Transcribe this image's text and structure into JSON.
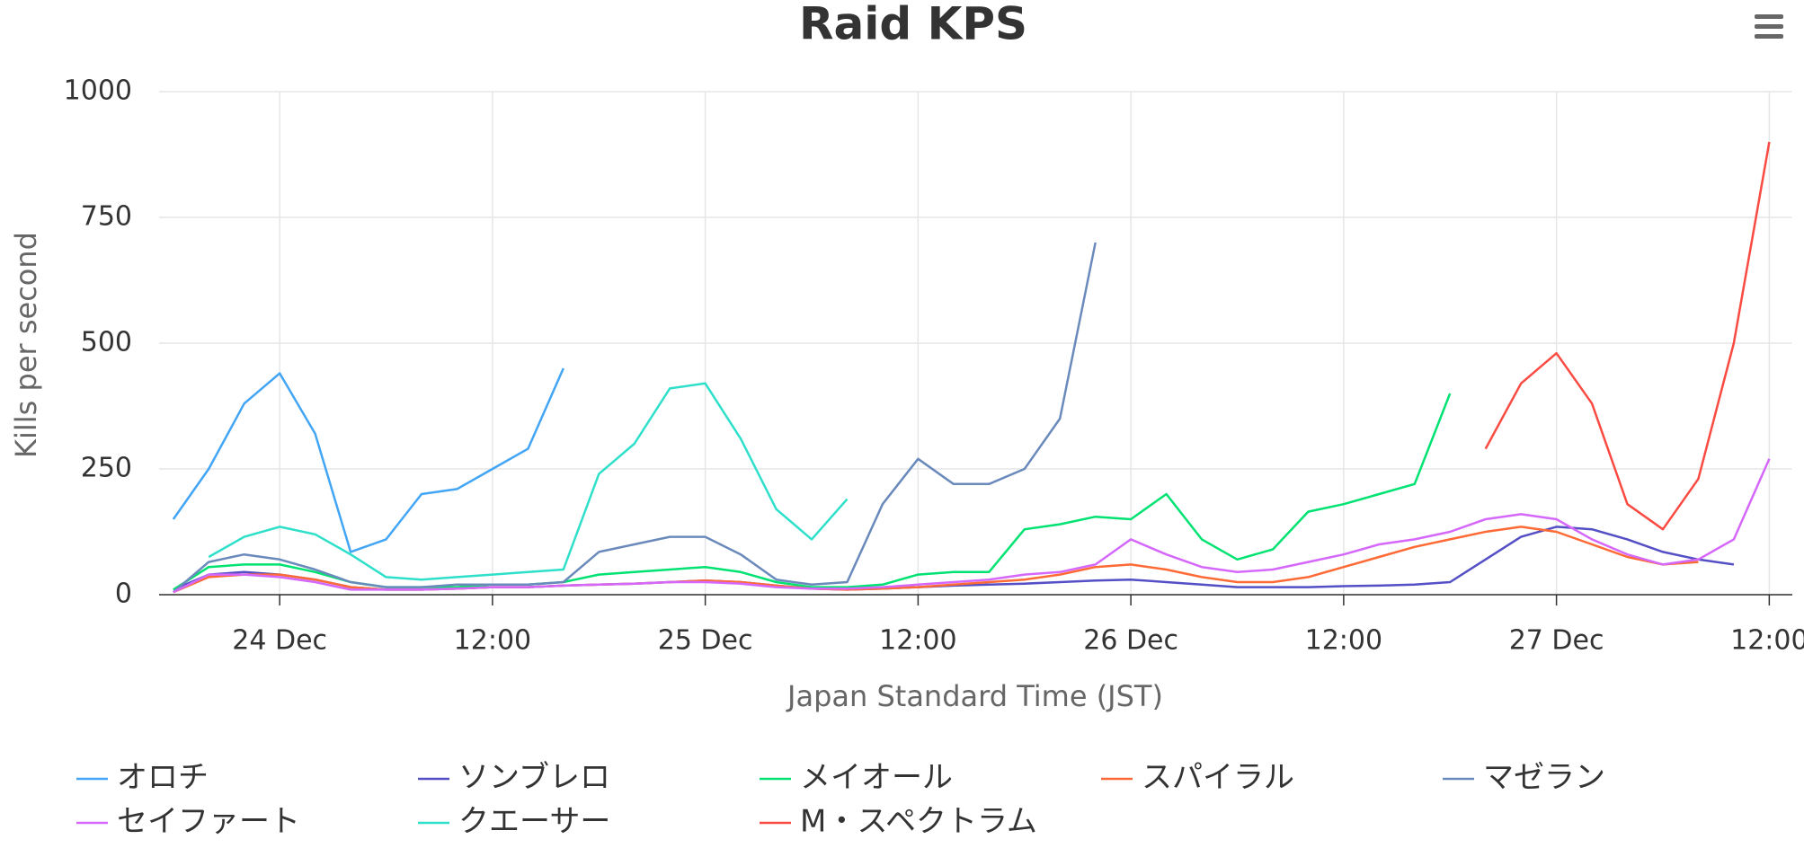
{
  "chart_data": {
    "type": "line",
    "title": "Raid KPS",
    "x_label": "Japan Standard Time (JST)",
    "y_label": "Kills per second",
    "x": [
      -6,
      -4,
      -2,
      0,
      2,
      4,
      6,
      8,
      10,
      12,
      14,
      16,
      18,
      20,
      22,
      24,
      26,
      28,
      30,
      32,
      34,
      36,
      38,
      40,
      42,
      44,
      46,
      48,
      50,
      52,
      54,
      56,
      58,
      60,
      62,
      64,
      66,
      68,
      70,
      72,
      74,
      76,
      78,
      80,
      82,
      84
    ],
    "xlim": [
      -6.8,
      85.3
    ],
    "xticks": [
      {
        "value": 0,
        "label": "24 Dec"
      },
      {
        "value": 12,
        "label": "12:00"
      },
      {
        "value": 24,
        "label": "25 Dec"
      },
      {
        "value": 36,
        "label": "12:00"
      },
      {
        "value": 48,
        "label": "26 Dec"
      },
      {
        "value": 60,
        "label": "12:00"
      },
      {
        "value": 72,
        "label": "27 Dec"
      },
      {
        "value": 84,
        "label": "12:00"
      }
    ],
    "ylim": [
      0,
      1000
    ],
    "yticks": [
      0,
      250,
      500,
      750,
      1000
    ],
    "grid": true,
    "series": [
      {
        "name": "オロチ",
        "color": "#42a5f5",
        "values": [
          150,
          250,
          380,
          440,
          320,
          85,
          110,
          200,
          210,
          250,
          290,
          450,
          null,
          null,
          null,
          null,
          null,
          null,
          null,
          null,
          null,
          null,
          null,
          null,
          null,
          null,
          null,
          null,
          null,
          null,
          null,
          null,
          null,
          null,
          null,
          null,
          null,
          null,
          null,
          null,
          null,
          null,
          null,
          null,
          null,
          null
        ]
      },
      {
        "name": "ソンブレロ",
        "color": "#544fc5",
        "values": [
          10,
          40,
          45,
          40,
          30,
          15,
          10,
          10,
          12,
          15,
          15,
          18,
          20,
          22,
          25,
          28,
          25,
          18,
          12,
          10,
          12,
          15,
          18,
          20,
          22,
          25,
          28,
          30,
          25,
          20,
          15,
          15,
          15,
          17,
          18,
          20,
          25,
          70,
          115,
          135,
          130,
          110,
          85,
          70,
          60,
          null
        ]
      },
      {
        "name": "メイオール",
        "color": "#00e272",
        "values": [
          10,
          55,
          60,
          60,
          45,
          25,
          15,
          15,
          15,
          20,
          20,
          25,
          40,
          45,
          50,
          55,
          45,
          25,
          15,
          15,
          20,
          40,
          45,
          45,
          130,
          140,
          155,
          150,
          200,
          110,
          70,
          90,
          165,
          180,
          200,
          220,
          400,
          null,
          null,
          null,
          null,
          null,
          null,
          null,
          null,
          null
        ]
      },
      {
        "name": "スパイラル",
        "color": "#fe6a35",
        "values": [
          5,
          35,
          40,
          40,
          30,
          15,
          10,
          10,
          12,
          15,
          15,
          18,
          20,
          22,
          25,
          28,
          25,
          18,
          12,
          10,
          12,
          15,
          20,
          25,
          30,
          40,
          55,
          60,
          50,
          35,
          25,
          25,
          35,
          55,
          75,
          95,
          110,
          125,
          135,
          125,
          100,
          75,
          60,
          65,
          null,
          null
        ]
      },
      {
        "name": "マゼラン",
        "color": "#6b8abc",
        "values": [
          5,
          65,
          80,
          70,
          50,
          25,
          15,
          15,
          20,
          20,
          20,
          25,
          85,
          100,
          115,
          115,
          80,
          30,
          20,
          25,
          180,
          270,
          220,
          220,
          250,
          350,
          700,
          null,
          null,
          null,
          null,
          null,
          null,
          null,
          null,
          null,
          null,
          null,
          null,
          null,
          null,
          null,
          null,
          null,
          null,
          null
        ]
      },
      {
        "name": "セイファート",
        "color": "#d568fb",
        "values": [
          5,
          40,
          40,
          35,
          25,
          10,
          10,
          10,
          12,
          15,
          15,
          18,
          20,
          22,
          25,
          25,
          22,
          15,
          12,
          12,
          15,
          20,
          25,
          30,
          40,
          45,
          60,
          110,
          80,
          55,
          45,
          50,
          65,
          80,
          100,
          110,
          125,
          150,
          160,
          150,
          110,
          80,
          60,
          70,
          110,
          270
        ]
      },
      {
        "name": "クエーサー",
        "color": "#2ee0ca",
        "values": [
          null,
          75,
          115,
          135,
          120,
          80,
          35,
          30,
          35,
          40,
          45,
          50,
          240,
          300,
          410,
          420,
          310,
          170,
          110,
          190,
          null,
          null,
          null,
          null,
          null,
          null,
          null,
          null,
          null,
          null,
          null,
          null,
          null,
          null,
          null,
          null,
          null,
          null,
          null,
          null,
          null,
          null,
          null,
          null,
          null,
          null
        ]
      },
      {
        "name": "M・スペクトラム",
        "color": "#fa4b42",
        "values": [
          null,
          null,
          null,
          null,
          null,
          null,
          null,
          null,
          null,
          null,
          null,
          null,
          null,
          null,
          null,
          null,
          null,
          null,
          null,
          null,
          null,
          null,
          null,
          null,
          null,
          null,
          null,
          null,
          null,
          null,
          null,
          null,
          null,
          null,
          null,
          null,
          null,
          290,
          420,
          480,
          380,
          180,
          130,
          230,
          500,
          900
        ]
      }
    ]
  }
}
